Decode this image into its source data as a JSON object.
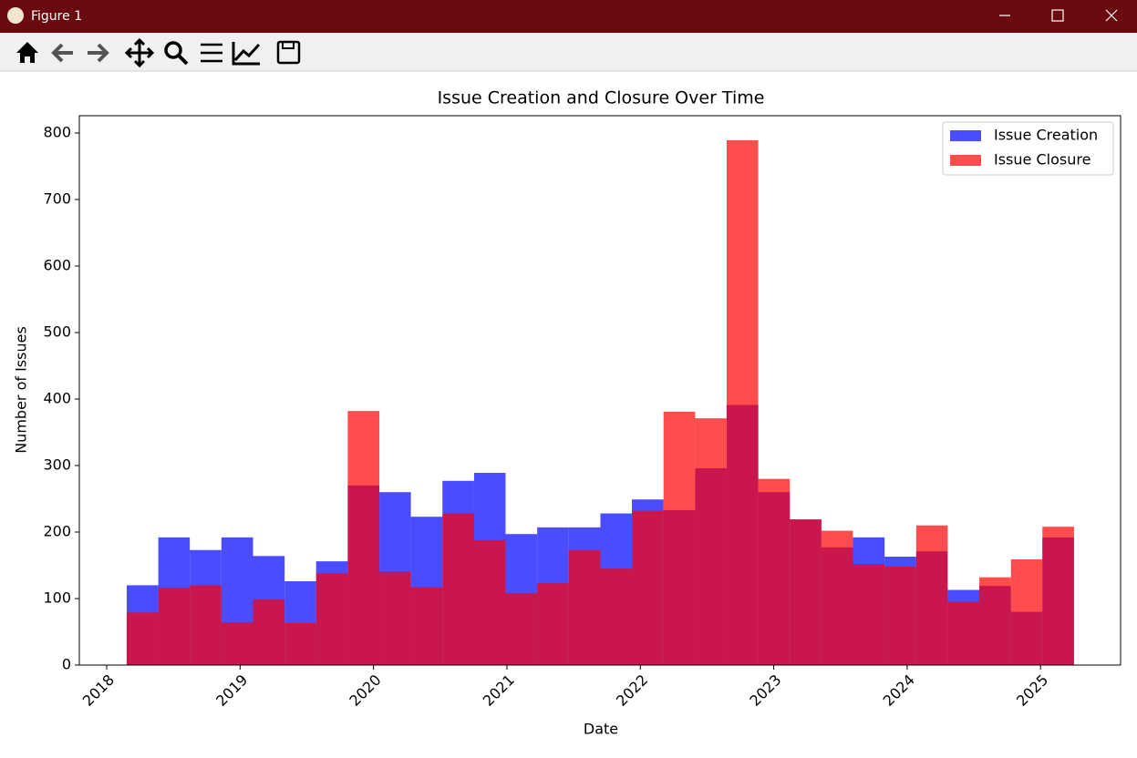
{
  "window": {
    "title": "Figure 1"
  },
  "chart_data": {
    "type": "histogram",
    "title": "Issue Creation and Closure Over Time",
    "x_label": "Date",
    "y_label": "Number of Issues",
    "bins": [
      2018.15,
      2018.387,
      2018.623,
      2018.86,
      2019.097,
      2019.334,
      2019.57,
      2019.807,
      2020.044,
      2020.28,
      2020.517,
      2020.754,
      2020.99,
      2021.227,
      2021.464,
      2021.701,
      2021.937,
      2022.174,
      2022.411,
      2022.647,
      2022.884,
      2023.121,
      2023.357,
      2023.594,
      2023.831,
      2024.068,
      2024.304,
      2024.541,
      2024.778,
      2025.014,
      2025.251
    ],
    "series": [
      {
        "name": "Issue Creation",
        "color": "#0000ff",
        "alpha": 0.7,
        "values": [
          120,
          192,
          173,
          192,
          164,
          126,
          156,
          270,
          260,
          223,
          277,
          289,
          197,
          207,
          207,
          228,
          249,
          233,
          296,
          391,
          260,
          219,
          177,
          192,
          163,
          171,
          113,
          119,
          80,
          192
        ]
      },
      {
        "name": "Issue Closure",
        "color": "#ff0000",
        "alpha": 0.7,
        "values": [
          79,
          116,
          120,
          64,
          99,
          63,
          138,
          382,
          141,
          117,
          228,
          188,
          108,
          123,
          173,
          145,
          232,
          381,
          371,
          789,
          280,
          219,
          202,
          152,
          148,
          210,
          95,
          132,
          159,
          208
        ]
      }
    ],
    "xlim": [
      2017.795,
      2025.6
    ],
    "xticks": [
      2018,
      2019,
      2020,
      2021,
      2022,
      2023,
      2024,
      2025
    ],
    "ylim": [
      0,
      826
    ],
    "yticks": [
      0,
      100,
      200,
      300,
      400,
      500,
      600,
      700,
      800
    ],
    "legend": "upper right",
    "grid": false
  }
}
